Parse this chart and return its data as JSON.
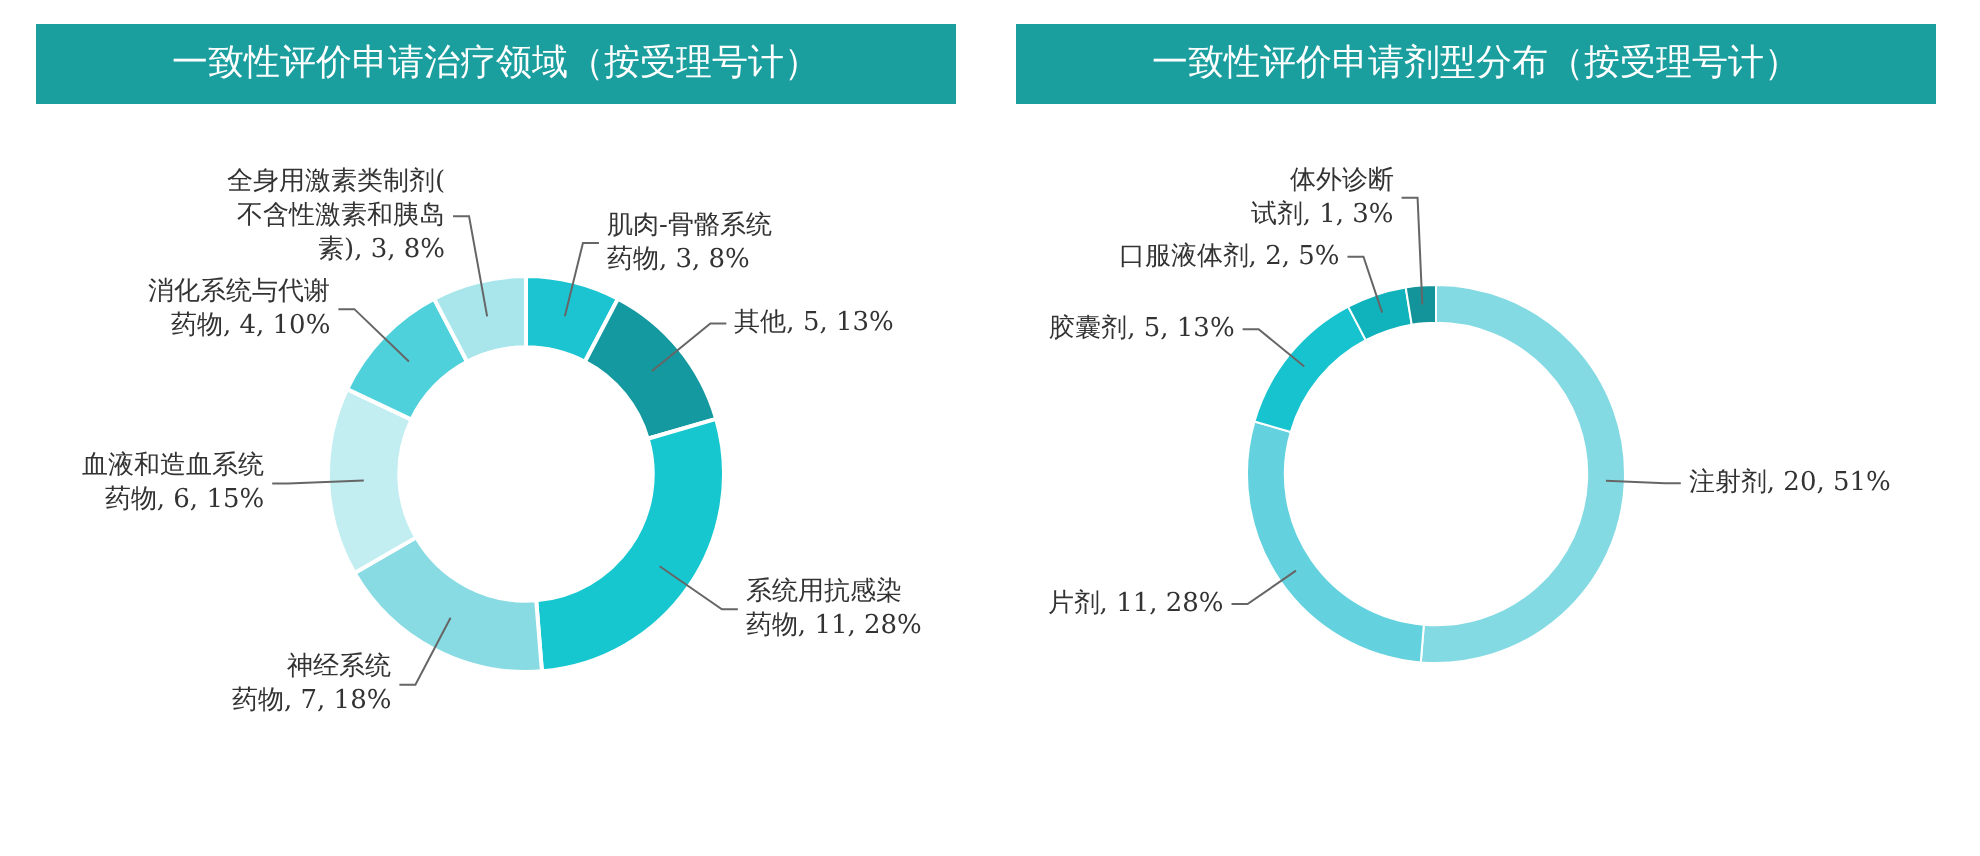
{
  "chart_data": [
    {
      "type": "donut",
      "title": "一致性评价申请治疗领域（按受理号计）",
      "categories": [
        "肌肉-骨骼系统药物",
        "其他",
        "系统用抗感染药物",
        "神经系统药物",
        "血液和造血系统药物",
        "消化系统与代谢药物",
        "全身用激素类制剂(不含性激素和胰岛素)"
      ],
      "values": [
        3,
        5,
        11,
        7,
        6,
        4,
        3
      ],
      "value_labels": [
        "3, 8%",
        "5, 13%",
        "11, 28%",
        "7, 18%",
        "6, 15%",
        "4, 10%",
        "3, 8%"
      ],
      "colors": [
        "#1cc4d2",
        "#13999f",
        "#17c7d0",
        "#88dbe3",
        "#c2eef1",
        "#4fd1db",
        "#a9e6ec"
      ],
      "legend": false
    },
    {
      "type": "donut",
      "title": "一致性评价申请剂型分布（按受理号计）",
      "categories": [
        "注射剂",
        "片剂",
        "胶囊剂",
        "口服液体剂",
        "体外诊断试剂"
      ],
      "values": [
        20,
        11,
        5,
        2,
        1
      ],
      "value_labels": [
        "20, 51%",
        "11, 28%",
        "5, 13%",
        "2, 5%",
        "1, 3%"
      ],
      "colors": [
        "#84dae3",
        "#63d2de",
        "#17c3cf",
        "#10b2bb",
        "#12949a"
      ],
      "legend": false
    }
  ]
}
